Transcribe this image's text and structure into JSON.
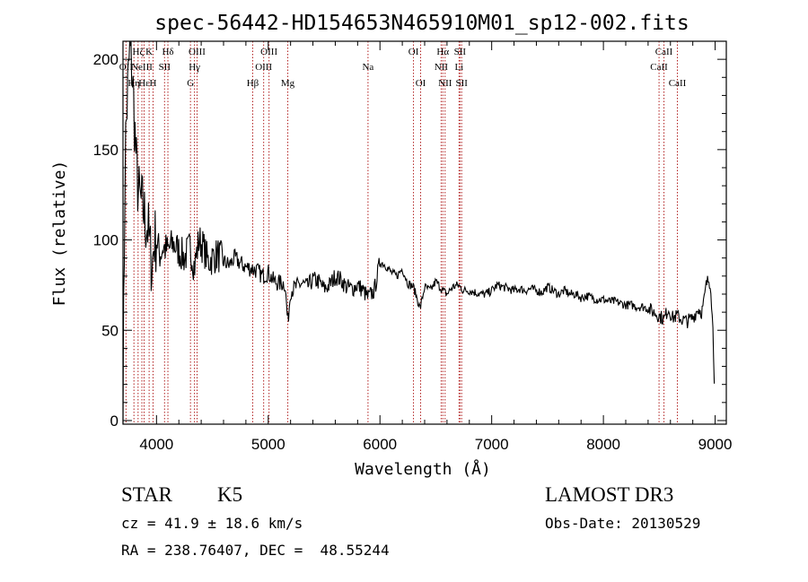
{
  "chart_data": {
    "type": "line",
    "title": "spec-56442-HD154653N465910M01_sp12-002.fits",
    "xlabel": "Wavelength (Å)",
    "ylabel": "Flux (relative)",
    "xlim": [
      3700,
      9100
    ],
    "ylim": [
      -2,
      210
    ],
    "xticks": [
      4000,
      5000,
      6000,
      7000,
      8000,
      9000
    ],
    "yticks": [
      0,
      50,
      100,
      150,
      200
    ],
    "grid": false,
    "line_color": "#000000",
    "marker_color": "#b22222",
    "series": [
      {
        "x": [
          3700,
          3720,
          3740,
          3760,
          3780,
          3800,
          3820,
          3840,
          3860,
          3880,
          3900,
          3920,
          3940,
          3960,
          3980,
          4000,
          4030,
          4060,
          4100,
          4150,
          4200,
          4250,
          4300,
          4340,
          4380,
          4420,
          4460,
          4500,
          4550,
          4600,
          4650,
          4700,
          4750,
          4800,
          4861,
          4900,
          4950,
          5000,
          5050,
          5100,
          5150,
          5175,
          5200,
          5250,
          5300,
          5350,
          5400,
          5450,
          5500,
          5550,
          5600,
          5650,
          5700,
          5750,
          5800,
          5850,
          5893,
          5950,
          6000,
          6050,
          6100,
          6150,
          6200,
          6250,
          6300,
          6360,
          6400,
          6450,
          6500,
          6563,
          6600,
          6650,
          6700,
          6750,
          6800,
          6850,
          6900,
          6950,
          7000,
          7050,
          7100,
          7150,
          7200,
          7250,
          7300,
          7350,
          7400,
          7450,
          7500,
          7550,
          7600,
          7650,
          7700,
          7750,
          7800,
          7850,
          7900,
          7950,
          8000,
          8050,
          8100,
          8150,
          8200,
          8250,
          8300,
          8350,
          8400,
          8450,
          8500,
          8542,
          8580,
          8620,
          8662,
          8700,
          8750,
          8800,
          8850,
          8880,
          8900,
          8920,
          8940,
          8960,
          8980,
          8995
        ],
        "y": [
          12,
          150,
          180,
          205,
          195,
          170,
          140,
          125,
          120,
          118,
          110,
          108,
          96,
          85,
          100,
          100,
          92,
          96,
          94,
          98,
          94,
          90,
          96,
          85,
          100,
          96,
          88,
          90,
          92,
          88,
          86,
          90,
          87,
          85,
          84,
          83,
          80,
          82,
          77,
          76,
          76,
          54,
          72,
          74,
          76,
          74,
          78,
          77,
          73,
          75,
          80,
          78,
          74,
          73,
          75,
          72,
          68,
          72,
          88,
          86,
          82,
          80,
          84,
          76,
          74,
          62,
          74,
          72,
          77,
          72,
          70,
          74,
          75,
          72,
          72,
          71,
          70,
          70,
          72,
          75,
          74,
          73,
          72,
          73,
          72,
          73,
          72,
          71,
          74,
          72,
          70,
          72,
          70,
          70,
          68,
          69,
          68,
          67,
          67,
          66,
          66,
          65,
          64,
          64,
          63,
          63,
          62,
          60,
          58,
          56,
          62,
          57,
          58,
          56,
          55,
          57,
          62,
          60,
          66,
          75,
          78,
          76,
          50,
          18
        ]
      }
    ],
    "line_markers": [
      {
        "wl": 3727,
        "label": "OII",
        "row": 1
      },
      {
        "wl": 3798,
        "label": "Hη",
        "row": 2
      },
      {
        "wl": 3835,
        "label": "Hζ",
        "row": 0
      },
      {
        "wl": 3869,
        "label": "NeIII",
        "row": 1
      },
      {
        "wl": 3889,
        "label": "Hε",
        "row": 2
      },
      {
        "wl": 3934,
        "label": "K",
        "row": 0
      },
      {
        "wl": 3969,
        "label": "H",
        "row": 2
      },
      {
        "wl": 4072,
        "label": "SII",
        "row": 1
      },
      {
        "wl": 4102,
        "label": "Hδ",
        "row": 0
      },
      {
        "wl": 4304,
        "label": "G",
        "row": 2
      },
      {
        "wl": 4340,
        "label": "Hγ",
        "row": 1
      },
      {
        "wl": 4363,
        "label": "OIII",
        "row": 0
      },
      {
        "wl": 4861,
        "label": "Hβ",
        "row": 2
      },
      {
        "wl": 4959,
        "label": "OIII",
        "row": 1
      },
      {
        "wl": 5007,
        "label": "OIII",
        "row": 0
      },
      {
        "wl": 5175,
        "label": "Mg",
        "row": 2
      },
      {
        "wl": 5893,
        "label": "Na",
        "row": 1
      },
      {
        "wl": 6300,
        "label": "OI",
        "row": 0
      },
      {
        "wl": 6364,
        "label": "OI",
        "row": 2
      },
      {
        "wl": 6548,
        "label": "NII",
        "row": 1
      },
      {
        "wl": 6563,
        "label": "Hα",
        "row": 0
      },
      {
        "wl": 6583,
        "label": "NII",
        "row": 2
      },
      {
        "wl": 6708,
        "label": "Li",
        "row": 1
      },
      {
        "wl": 6716,
        "label": "SII",
        "row": 0
      },
      {
        "wl": 6731,
        "label": "SII",
        "row": 2
      },
      {
        "wl": 8498,
        "label": "CaII",
        "row": 1
      },
      {
        "wl": 8542,
        "label": "CaII",
        "row": 0
      },
      {
        "wl": 8662,
        "label": "CaII",
        "row": 2
      }
    ]
  },
  "info": {
    "class": "STAR",
    "subclass": "K5",
    "survey": "LAMOST DR3",
    "redshift": "cz = 41.9 ± 18.6 km/s",
    "obs_date": "Obs-Date: 20130529",
    "coords": "RA = 238.76407, DEC =  48.55244"
  }
}
